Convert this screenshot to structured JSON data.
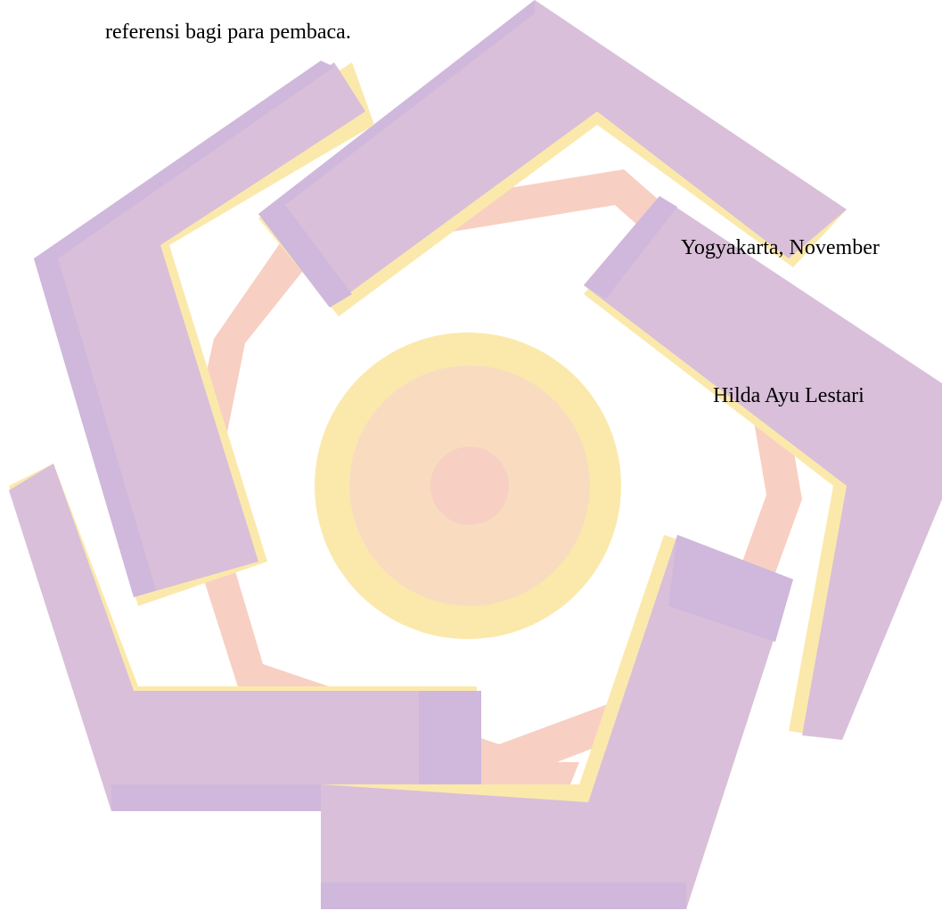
{
  "document": {
    "text_line": "referensi bagi para pembaca.",
    "place_date": "Yogyakarta, November",
    "author_name": "Hilda Ayu Lestari"
  },
  "watermark": {
    "icon": "university-logo-watermark",
    "colors": {
      "purple": "#d9bfd9",
      "purple_shade": "#cfb8db",
      "yellow": "#fbe9ac",
      "peach": "#f9dcc0",
      "salmon": "#f8cfc3"
    }
  }
}
